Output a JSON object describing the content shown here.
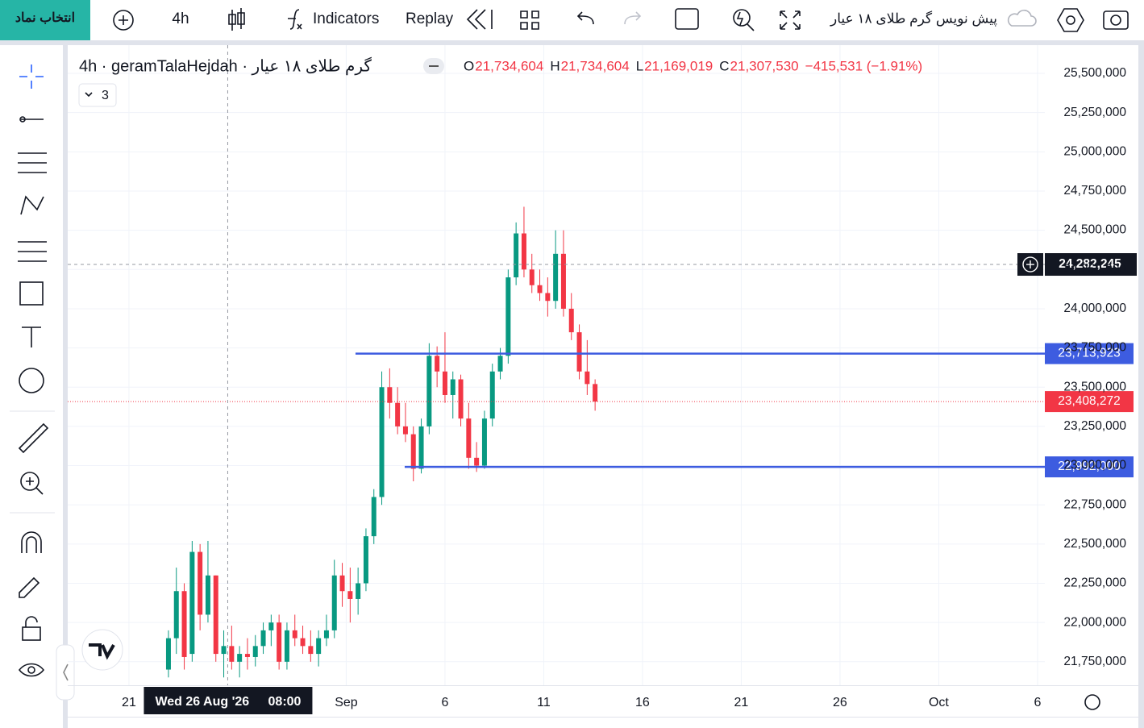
{
  "toolbar": {
    "symbol_button": "انتخاب نماد",
    "interval": "4h",
    "indicators": "Indicators",
    "replay": "Replay",
    "layout_name": "پیش نویس گرم طلای ۱۸ عیار"
  },
  "legend": {
    "title": "گرم طلای ۱۸ عیار · 4h · geramTalaHejdah",
    "collapsed_count": "3",
    "ohlc": [
      {
        "key": "O",
        "value": "21,734,604"
      },
      {
        "key": "H",
        "value": "21,734,604"
      },
      {
        "key": "L",
        "value": "21,169,019"
      },
      {
        "key": "C",
        "value": "21,307,530"
      }
    ],
    "change": "−415,531 (−1.91%)"
  },
  "chart_data": {
    "type": "candlestick",
    "x": [
      23.0,
      23.4,
      23.8,
      24.2,
      24.6,
      25.0,
      25.4,
      25.8,
      26.2,
      26.6,
      27.0,
      27.4,
      27.8,
      28.2,
      28.6,
      29.0,
      29.4,
      29.8,
      30.2,
      30.6,
      31.0,
      31.4,
      31.8,
      32.2,
      32.6,
      33.0,
      33.4,
      33.8,
      34.2,
      34.6,
      35.0,
      35.4,
      35.8,
      36.2,
      36.6,
      37.0,
      37.4,
      37.8,
      38.2,
      38.6,
      39.0,
      39.4,
      39.8,
      40.2,
      40.6,
      41.0,
      41.4,
      41.8,
      42.2,
      42.6,
      43.0,
      43.4,
      43.8,
      44.2,
      44.6
    ],
    "open": [
      21700000,
      21900000,
      22200000,
      21800000,
      22450000,
      22050000,
      22300000,
      21800000,
      21850000,
      21750000,
      21800000,
      21780000,
      21850000,
      21950000,
      22000000,
      21750000,
      21950000,
      21900000,
      21850000,
      21800000,
      21900000,
      21950000,
      22300000,
      22200000,
      22150000,
      22250000,
      22550000,
      22800000,
      23500000,
      23400000,
      23250000,
      23200000,
      22980000,
      23250000,
      23700000,
      23600000,
      23450000,
      23550000,
      23300000,
      23050000,
      23000000,
      23300000,
      23600000,
      23700000,
      24200000,
      24480000,
      24250000,
      24150000,
      24100000,
      24050000,
      24350000,
      24000000,
      23850000,
      23600000,
      23520000
    ],
    "high": [
      21950000,
      22350000,
      22250000,
      22520000,
      22500000,
      22520000,
      22300000,
      21950000,
      21980000,
      21850000,
      21900000,
      21920000,
      22000000,
      22050000,
      22050000,
      22000000,
      22050000,
      21980000,
      21950000,
      21950000,
      22050000,
      22400000,
      22380000,
      22350000,
      22350000,
      22600000,
      22850000,
      23600000,
      23620000,
      23500000,
      23400000,
      23250000,
      23300000,
      23780000,
      23760000,
      23850000,
      23600000,
      23580000,
      23400000,
      23150000,
      23350000,
      23650000,
      23750000,
      24250000,
      24550000,
      24650000,
      24350000,
      24250000,
      24200000,
      24500000,
      24500000,
      24100000,
      23900000,
      23800000,
      23550000
    ],
    "low": [
      21650000,
      21800000,
      21700000,
      21750000,
      21950000,
      22000000,
      21750000,
      21650000,
      21700000,
      21650000,
      21700000,
      21720000,
      21800000,
      21850000,
      21700000,
      21700000,
      21850000,
      21800000,
      21750000,
      21720000,
      21850000,
      21900000,
      22100000,
      22000000,
      22050000,
      22200000,
      22500000,
      22750000,
      23300000,
      23200000,
      23150000,
      22900000,
      22950000,
      23200000,
      23500000,
      23400000,
      23300000,
      23250000,
      22980000,
      22960000,
      22980000,
      23250000,
      23550000,
      23650000,
      24150000,
      24200000,
      24100000,
      24050000,
      23950000,
      24000000,
      23950000,
      23800000,
      23550000,
      23450000,
      23350000
    ],
    "close": [
      21900000,
      22200000,
      21780000,
      22450000,
      22050000,
      22300000,
      21800000,
      21850000,
      21750000,
      21800000,
      21780000,
      21850000,
      21950000,
      22000000,
      21750000,
      21950000,
      21900000,
      21850000,
      21800000,
      21900000,
      21950000,
      22300000,
      22200000,
      22150000,
      22250000,
      22550000,
      22800000,
      23500000,
      23400000,
      23250000,
      23200000,
      22980000,
      23250000,
      23700000,
      23600000,
      23450000,
      23550000,
      23300000,
      23050000,
      23000000,
      23300000,
      23600000,
      23700000,
      24200000,
      24480000,
      24250000,
      24150000,
      24100000,
      24050000,
      24350000,
      24000000,
      23850000,
      23600000,
      23520000,
      23408272
    ],
    "up_color": "#089981",
    "down_color": "#f23645",
    "ylim": [
      21600000,
      25680000
    ],
    "yticks": [
      {
        "value": 21750000,
        "label": "21,750,000"
      },
      {
        "value": 22000000,
        "label": "22,000,000"
      },
      {
        "value": 22250000,
        "label": "22,250,000"
      },
      {
        "value": 22500000,
        "label": "22,500,000"
      },
      {
        "value": 22750000,
        "label": "22,750,000"
      },
      {
        "value": 23000000,
        "label": "23,000,000"
      },
      {
        "value": 23250000,
        "label": "23,250,000"
      },
      {
        "value": 23500000,
        "label": "23,500,000"
      },
      {
        "value": 23750000,
        "label": "23,750,000"
      },
      {
        "value": 24000000,
        "label": "24,000,000"
      },
      {
        "value": 24250000,
        "label": "24,250,000"
      },
      {
        "value": 24500000,
        "label": "24,500,000"
      },
      {
        "value": 24750000,
        "label": "24,750,000"
      },
      {
        "value": 25000000,
        "label": "25,000,000"
      },
      {
        "value": 25250000,
        "label": "25,250,000"
      },
      {
        "value": 25500000,
        "label": "25,500,000"
      }
    ],
    "xlim": [
      17.9,
      67.37
    ],
    "xticks": [
      {
        "value": 21,
        "label": "21"
      },
      {
        "value": 32,
        "label": "Sep"
      },
      {
        "value": 37,
        "label": "6"
      },
      {
        "value": 42,
        "label": "11"
      },
      {
        "value": 47,
        "label": "16"
      },
      {
        "value": 52,
        "label": "21"
      },
      {
        "value": 57,
        "label": "26"
      },
      {
        "value": 62,
        "label": "Oct"
      },
      {
        "value": 67,
        "label": "6"
      }
    ],
    "grid": true,
    "hlines": [
      {
        "value": 23713923,
        "label": "23,713,923",
        "x_start": 32.47,
        "color": "#3d5ce0"
      },
      {
        "value": 22992000,
        "label": "22,992,000",
        "x_start": 34.96,
        "color": "#3d5ce0"
      }
    ],
    "last_price": {
      "value": 23408272,
      "label": "23,408,272"
    },
    "crosshair": {
      "value": 24282245,
      "label": "24,282,245",
      "x": 26.0,
      "date_label": "Wed 26 Aug '26",
      "time_label": "08:00"
    }
  }
}
